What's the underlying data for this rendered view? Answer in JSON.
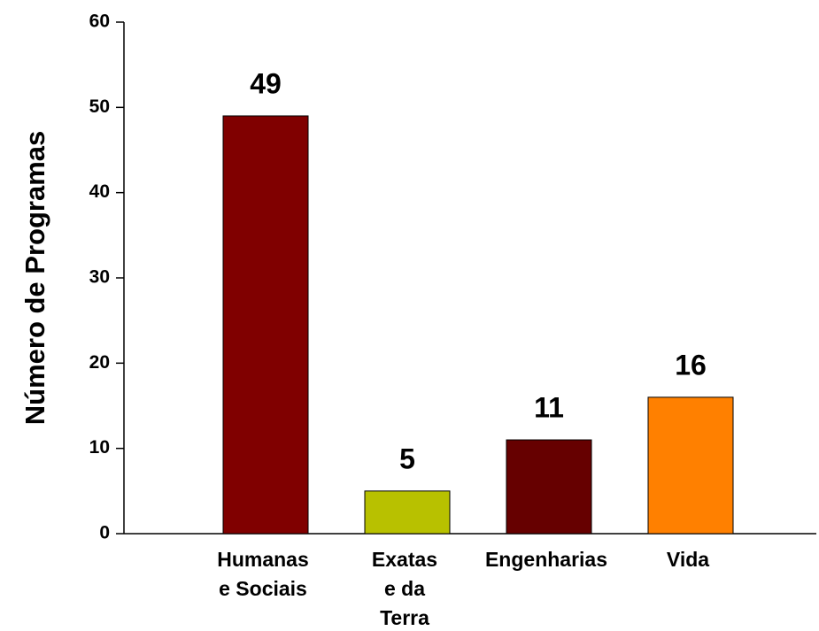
{
  "chart_data": {
    "type": "bar",
    "y_label": "Número de Programas",
    "categories": [
      [
        "Humanas",
        "e Sociais"
      ],
      [
        "Exatas",
        "e da",
        "Terra"
      ],
      [
        "Engenharias"
      ],
      [
        "Vida"
      ]
    ],
    "values": [
      49,
      5,
      11,
      16
    ],
    "colors": [
      "#800000",
      "#b8c100",
      "#660000",
      "#ff8000"
    ],
    "ylim": [
      0,
      60
    ],
    "yticks": [
      0,
      10,
      20,
      30,
      40,
      50,
      60
    ],
    "grid": false
  }
}
